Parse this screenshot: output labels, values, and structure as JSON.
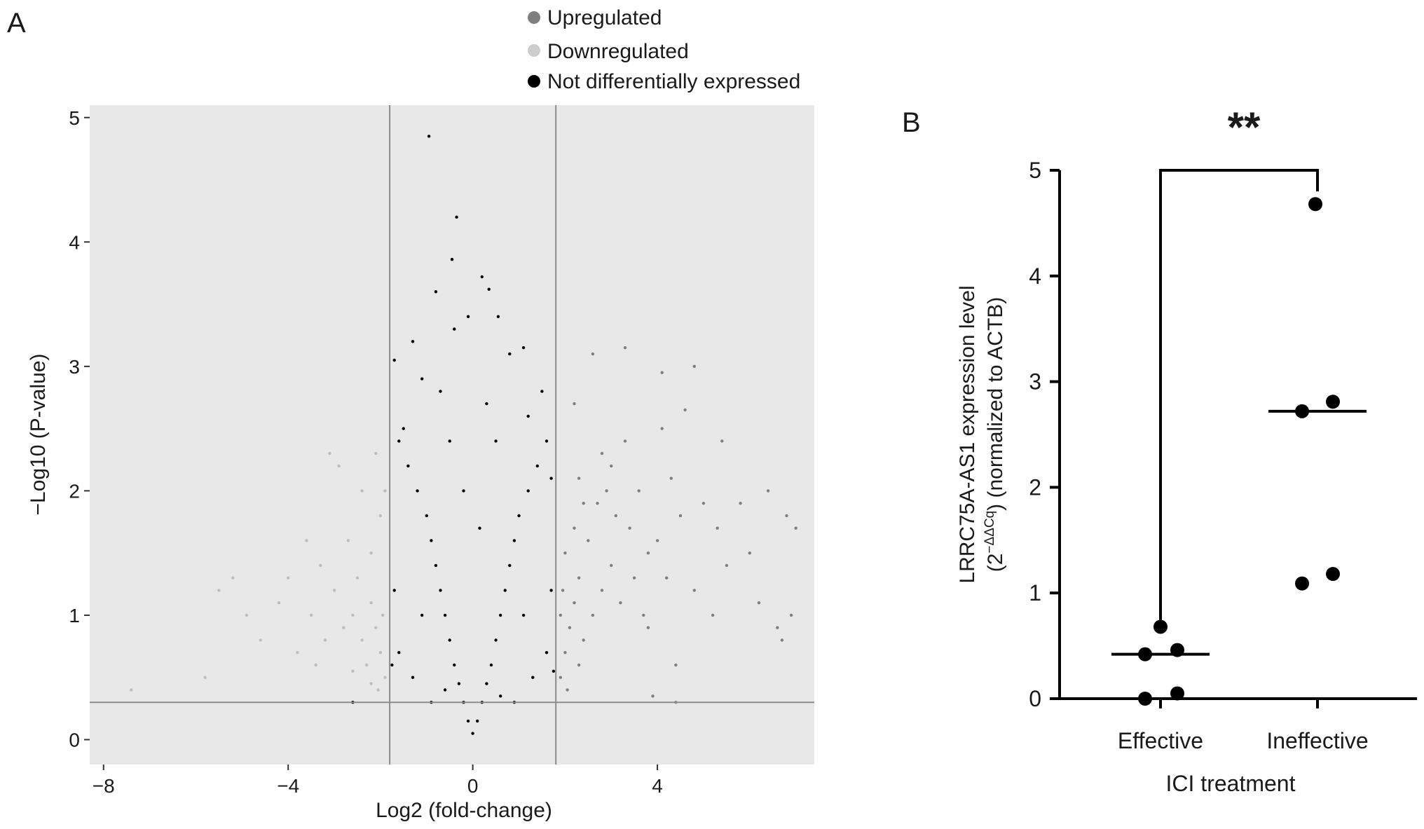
{
  "panel_a": {
    "label": "A",
    "chart_data": {
      "type": "scatter",
      "xlabel": "Log2 (fold-change)",
      "ylabel": "−Log10 (P-value)",
      "xlim": [
        -8.3,
        7.4
      ],
      "ylim": [
        -0.2,
        5.1
      ],
      "x_ticks": [
        {
          "value": -8,
          "label": "−8"
        },
        {
          "value": -4,
          "label": "−4"
        },
        {
          "value": 0,
          "label": "0"
        },
        {
          "value": 4,
          "label": "4"
        }
      ],
      "y_ticks": [
        {
          "value": 0,
          "label": "0"
        },
        {
          "value": 1,
          "label": "1"
        },
        {
          "value": 2,
          "label": "2"
        },
        {
          "value": 3,
          "label": "3"
        },
        {
          "value": 4,
          "label": "4"
        },
        {
          "value": 5,
          "label": "5"
        }
      ],
      "vlines": [
        -1.8,
        1.8
      ],
      "hline": 0.3,
      "legend_position": "top",
      "legend": [
        {
          "name": "Upregulated",
          "color": "#7f7f7f"
        },
        {
          "name": "Downregulated",
          "color": "#cdcdcd"
        },
        {
          "name": "Not differentially expressed",
          "color": "#000000"
        }
      ],
      "colors": {
        "background": "#e8e8e8",
        "upregulated": "#7f7f7f",
        "downregulated": "#bdbdbd",
        "not_de": "#000000"
      },
      "series": [
        {
          "name": "Upregulated",
          "points": [
            [
              1.9,
              0.5
            ],
            [
              2.0,
              0.7
            ],
            [
              2.1,
              0.9
            ],
            [
              2.2,
              1.1
            ],
            [
              2.3,
              1.3
            ],
            [
              2.0,
              1.5
            ],
            [
              2.4,
              0.8
            ],
            [
              2.6,
              1.0
            ],
            [
              2.8,
              1.2
            ],
            [
              3.0,
              1.4
            ],
            [
              2.2,
              1.7
            ],
            [
              2.5,
              1.6
            ],
            [
              3.2,
              1.1
            ],
            [
              3.5,
              1.3
            ],
            [
              3.8,
              1.5
            ],
            [
              2.7,
              1.9
            ],
            [
              3.1,
              1.8
            ],
            [
              3.4,
              1.7
            ],
            [
              4.0,
              1.6
            ],
            [
              4.2,
              1.3
            ],
            [
              2.3,
              2.1
            ],
            [
              2.9,
              2.0
            ],
            [
              3.6,
              2.0
            ],
            [
              4.5,
              1.8
            ],
            [
              5.0,
              1.9
            ],
            [
              5.3,
              1.7
            ],
            [
              5.8,
              1.9
            ],
            [
              6.4,
              2.0
            ],
            [
              6.8,
              1.8
            ],
            [
              7.0,
              1.7
            ],
            [
              6.0,
              1.5
            ],
            [
              5.5,
              1.4
            ],
            [
              4.8,
              1.2
            ],
            [
              5.2,
              1.0
            ],
            [
              6.2,
              1.1
            ],
            [
              6.6,
              0.9
            ],
            [
              6.9,
              1.0
            ],
            [
              6.7,
              0.8
            ],
            [
              4.4,
              0.6
            ],
            [
              3.8,
              0.9
            ],
            [
              2.8,
              2.3
            ],
            [
              3.3,
              2.4
            ],
            [
              4.1,
              2.5
            ],
            [
              5.4,
              2.4
            ],
            [
              2.2,
              2.7
            ],
            [
              2.6,
              3.1
            ],
            [
              3.3,
              3.15
            ],
            [
              4.1,
              2.95
            ],
            [
              4.6,
              2.65
            ],
            [
              4.8,
              3.0
            ],
            [
              3.0,
              2.2
            ],
            [
              1.9,
              1.0
            ],
            [
              1.95,
              1.2
            ],
            [
              2.05,
              0.4
            ],
            [
              2.3,
              0.6
            ],
            [
              3.9,
              0.35
            ],
            [
              4.4,
              0.3
            ],
            [
              2.4,
              1.9
            ],
            [
              3.7,
              1.0
            ],
            [
              4.3,
              2.1
            ]
          ]
        },
        {
          "name": "Downregulated",
          "points": [
            [
              -1.9,
              0.5
            ],
            [
              -2.0,
              0.7
            ],
            [
              -2.1,
              0.9
            ],
            [
              -2.2,
              1.1
            ],
            [
              -2.3,
              0.6
            ],
            [
              -2.4,
              0.8
            ],
            [
              -2.6,
              1.0
            ],
            [
              -2.8,
              0.9
            ],
            [
              -3.0,
              1.2
            ],
            [
              -2.5,
              1.3
            ],
            [
              -2.2,
              1.5
            ],
            [
              -3.2,
              0.8
            ],
            [
              -3.5,
              1.0
            ],
            [
              -3.8,
              0.7
            ],
            [
              -2.7,
              1.6
            ],
            [
              -2.0,
              1.8
            ],
            [
              -2.4,
              2.0
            ],
            [
              -2.9,
              2.2
            ],
            [
              -3.3,
              1.4
            ],
            [
              -4.2,
              1.1
            ],
            [
              -4.6,
              0.8
            ],
            [
              -5.2,
              1.3
            ],
            [
              -5.5,
              1.2
            ],
            [
              -5.8,
              0.5
            ],
            [
              -4.9,
              1.0
            ],
            [
              -7.4,
              0.4
            ],
            [
              -3.1,
              2.3
            ],
            [
              -2.1,
              2.3
            ],
            [
              -1.95,
              1.0
            ],
            [
              -2.05,
              0.4
            ],
            [
              -3.6,
              1.6
            ],
            [
              -4.0,
              1.3
            ],
            [
              -2.6,
              0.55
            ],
            [
              -3.4,
              0.6
            ],
            [
              -1.9,
              2.0
            ],
            [
              -2.2,
              0.45
            ]
          ]
        },
        {
          "name": "Not differentially expressed",
          "points": [
            [
              0,
              0.05
            ],
            [
              -0.1,
              0.15
            ],
            [
              0.1,
              0.15
            ],
            [
              -0.2,
              0.3
            ],
            [
              0.2,
              0.3
            ],
            [
              -0.3,
              0.45
            ],
            [
              0.3,
              0.45
            ],
            [
              -0.4,
              0.6
            ],
            [
              0.4,
              0.6
            ],
            [
              -0.5,
              0.8
            ],
            [
              0.5,
              0.8
            ],
            [
              -0.6,
              1.0
            ],
            [
              0.6,
              1.0
            ],
            [
              -0.7,
              1.2
            ],
            [
              0.7,
              1.2
            ],
            [
              -0.8,
              1.4
            ],
            [
              0.8,
              1.4
            ],
            [
              -0.9,
              1.6
            ],
            [
              0.9,
              1.6
            ],
            [
              -1.0,
              1.8
            ],
            [
              1.0,
              1.8
            ],
            [
              -1.2,
              2.0
            ],
            [
              1.2,
              2.0
            ],
            [
              -1.4,
              2.2
            ],
            [
              1.4,
              2.2
            ],
            [
              -1.6,
              2.4
            ],
            [
              1.6,
              2.4
            ],
            [
              -1.7,
              1.2
            ],
            [
              1.7,
              1.2
            ],
            [
              -1.6,
              0.7
            ],
            [
              1.6,
              0.7
            ],
            [
              -1.3,
              0.5
            ],
            [
              1.3,
              0.5
            ],
            [
              -0.9,
              0.3
            ],
            [
              0.9,
              0.3
            ],
            [
              -0.5,
              2.4
            ],
            [
              0.5,
              2.4
            ],
            [
              -0.7,
              2.8
            ],
            [
              0.3,
              2.7
            ],
            [
              -0.4,
              3.3
            ],
            [
              0.8,
              3.1
            ],
            [
              -0.95,
              4.85
            ],
            [
              -0.35,
              4.2
            ],
            [
              -0.45,
              3.86
            ],
            [
              0.2,
              3.72
            ],
            [
              0.35,
              3.62
            ],
            [
              -0.8,
              3.6
            ],
            [
              -0.1,
              3.4
            ],
            [
              0.55,
              3.4
            ],
            [
              1.1,
              3.15
            ],
            [
              -1.1,
              2.9
            ],
            [
              1.2,
              2.6
            ],
            [
              -1.7,
              3.05
            ],
            [
              -1.5,
              2.5
            ],
            [
              1.7,
              2.1
            ],
            [
              -0.2,
              2.0
            ],
            [
              0.15,
              1.7
            ],
            [
              -1.1,
              1.0
            ],
            [
              1.1,
              1.0
            ],
            [
              -1.75,
              0.6
            ],
            [
              1.75,
              0.55
            ],
            [
              -0.6,
              0.4
            ],
            [
              0.6,
              0.35
            ],
            [
              -1.3,
              3.2
            ],
            [
              1.5,
              2.8
            ],
            [
              -2.6,
              0.3
            ]
          ]
        }
      ]
    }
  },
  "panel_b": {
    "label": "B",
    "chart_data": {
      "type": "scatter",
      "xlabel": "ICI treatment",
      "ylabel": "LRRC75A-AS1 expression level",
      "ylabel_line2_prefix": "(2",
      "ylabel_line2_sup": "−ΔΔCq",
      "ylabel_line2_suffix": ") (normalized to ACTB)",
      "categories": [
        "Effective",
        "Ineffective"
      ],
      "ylim": [
        0,
        5
      ],
      "y_ticks": [
        {
          "value": 0,
          "label": "0"
        },
        {
          "value": 1,
          "label": "1"
        },
        {
          "value": 2,
          "label": "2"
        },
        {
          "value": 3,
          "label": "3"
        },
        {
          "value": 4,
          "label": "4"
        },
        {
          "value": 5,
          "label": "5"
        }
      ],
      "series": [
        {
          "category": "Effective",
          "values": [
            0.68,
            0.42,
            0.46,
            0.0,
            0.05
          ],
          "median": 0.42
        },
        {
          "category": "Ineffective",
          "values": [
            4.68,
            2.81,
            2.72,
            1.18,
            1.09
          ],
          "median": 2.72
        }
      ],
      "significance": {
        "label": "**",
        "bracket_top": 5.0,
        "left_bottom": 0.7,
        "right_bottom": 4.8
      }
    }
  }
}
